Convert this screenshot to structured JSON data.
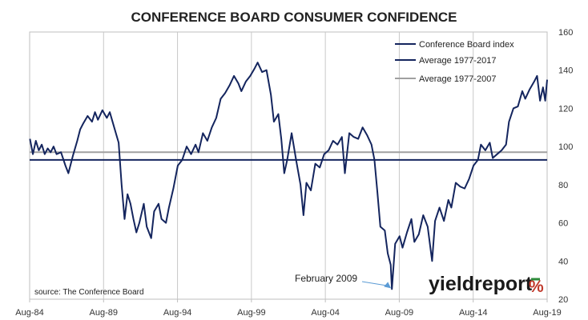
{
  "chart_data": {
    "type": "line",
    "title": "CONFERENCE BOARD CONSUMER CONFIDENCE",
    "xlabel": "",
    "ylabel": "",
    "ylim": [
      20,
      160
    ],
    "y_ticks": [
      20,
      40,
      60,
      80,
      100,
      120,
      140,
      160
    ],
    "xlim": [
      1984.58,
      2019.58
    ],
    "x_tick_labels": [
      "Aug-84",
      "Aug-89",
      "Aug-94",
      "Aug-99",
      "Aug-04",
      "Aug-09",
      "Aug-14",
      "Aug-19"
    ],
    "x_tick_positions": [
      1984.58,
      1989.58,
      1994.58,
      1999.58,
      2004.58,
      2009.58,
      2014.58,
      2019.58
    ],
    "grid": "vertical",
    "legend_position": "top-right",
    "series": [
      {
        "name": "Conference Board index",
        "color": "#14255e",
        "points": [
          [
            1984.6,
            104
          ],
          [
            1984.8,
            96
          ],
          [
            1985.0,
            103
          ],
          [
            1985.2,
            98
          ],
          [
            1985.4,
            101
          ],
          [
            1985.6,
            96
          ],
          [
            1985.8,
            99
          ],
          [
            1986.0,
            97
          ],
          [
            1986.2,
            100
          ],
          [
            1986.4,
            96
          ],
          [
            1986.7,
            97
          ],
          [
            1987.0,
            90
          ],
          [
            1987.2,
            86
          ],
          [
            1987.5,
            95
          ],
          [
            1987.8,
            103
          ],
          [
            1988.0,
            109
          ],
          [
            1988.2,
            112
          ],
          [
            1988.5,
            116
          ],
          [
            1988.8,
            113
          ],
          [
            1989.0,
            118
          ],
          [
            1989.2,
            114
          ],
          [
            1989.5,
            119
          ],
          [
            1989.8,
            115
          ],
          [
            1990.0,
            118
          ],
          [
            1990.3,
            110
          ],
          [
            1990.6,
            102
          ],
          [
            1990.8,
            80
          ],
          [
            1991.0,
            62
          ],
          [
            1991.2,
            75
          ],
          [
            1991.4,
            70
          ],
          [
            1991.6,
            62
          ],
          [
            1991.8,
            55
          ],
          [
            1992.0,
            60
          ],
          [
            1992.3,
            70
          ],
          [
            1992.5,
            58
          ],
          [
            1992.8,
            52
          ],
          [
            1993.0,
            66
          ],
          [
            1993.3,
            70
          ],
          [
            1993.5,
            62
          ],
          [
            1993.8,
            60
          ],
          [
            1994.0,
            68
          ],
          [
            1994.3,
            78
          ],
          [
            1994.6,
            90
          ],
          [
            1994.9,
            93
          ],
          [
            1995.2,
            100
          ],
          [
            1995.5,
            96
          ],
          [
            1995.8,
            101
          ],
          [
            1996.0,
            97
          ],
          [
            1996.3,
            107
          ],
          [
            1996.6,
            103
          ],
          [
            1996.9,
            110
          ],
          [
            1997.2,
            115
          ],
          [
            1997.5,
            125
          ],
          [
            1997.8,
            128
          ],
          [
            1998.1,
            132
          ],
          [
            1998.4,
            137
          ],
          [
            1998.7,
            133
          ],
          [
            1998.9,
            129
          ],
          [
            1999.2,
            134
          ],
          [
            1999.5,
            137
          ],
          [
            1999.8,
            141
          ],
          [
            2000.0,
            144
          ],
          [
            2000.3,
            139
          ],
          [
            2000.6,
            140
          ],
          [
            2000.9,
            127
          ],
          [
            2001.1,
            113
          ],
          [
            2001.4,
            117
          ],
          [
            2001.6,
            104
          ],
          [
            2001.8,
            86
          ],
          [
            2002.0,
            93
          ],
          [
            2002.3,
            107
          ],
          [
            2002.6,
            93
          ],
          [
            2002.9,
            80
          ],
          [
            2003.1,
            64
          ],
          [
            2003.3,
            81
          ],
          [
            2003.6,
            77
          ],
          [
            2003.9,
            91
          ],
          [
            2004.2,
            89
          ],
          [
            2004.5,
            96
          ],
          [
            2004.8,
            98
          ],
          [
            2005.1,
            103
          ],
          [
            2005.4,
            101
          ],
          [
            2005.7,
            105
          ],
          [
            2005.9,
            86
          ],
          [
            2006.2,
            107
          ],
          [
            2006.5,
            105
          ],
          [
            2006.8,
            104
          ],
          [
            2007.1,
            110
          ],
          [
            2007.4,
            106
          ],
          [
            2007.7,
            101
          ],
          [
            2007.9,
            93
          ],
          [
            2008.1,
            76
          ],
          [
            2008.3,
            58
          ],
          [
            2008.6,
            56
          ],
          [
            2008.8,
            44
          ],
          [
            2009.0,
            38
          ],
          [
            2009.08,
            25.3
          ],
          [
            2009.3,
            49
          ],
          [
            2009.6,
            53
          ],
          [
            2009.8,
            47
          ],
          [
            2010.1,
            55
          ],
          [
            2010.4,
            62
          ],
          [
            2010.6,
            50
          ],
          [
            2010.9,
            54
          ],
          [
            2011.2,
            64
          ],
          [
            2011.5,
            58
          ],
          [
            2011.8,
            40
          ],
          [
            2012.0,
            61
          ],
          [
            2012.3,
            68
          ],
          [
            2012.6,
            61
          ],
          [
            2012.9,
            72
          ],
          [
            2013.1,
            68
          ],
          [
            2013.4,
            81
          ],
          [
            2013.7,
            79
          ],
          [
            2014.0,
            78
          ],
          [
            2014.3,
            83
          ],
          [
            2014.6,
            90
          ],
          [
            2014.9,
            93
          ],
          [
            2015.1,
            101
          ],
          [
            2015.4,
            98
          ],
          [
            2015.7,
            102
          ],
          [
            2015.9,
            94
          ],
          [
            2016.2,
            96
          ],
          [
            2016.5,
            98
          ],
          [
            2016.8,
            101
          ],
          [
            2017.0,
            113
          ],
          [
            2017.3,
            120
          ],
          [
            2017.6,
            121
          ],
          [
            2017.9,
            129
          ],
          [
            2018.1,
            125
          ],
          [
            2018.4,
            130
          ],
          [
            2018.7,
            134
          ],
          [
            2018.9,
            137
          ],
          [
            2019.1,
            124
          ],
          [
            2019.3,
            131
          ],
          [
            2019.45,
            124
          ],
          [
            2019.58,
            135
          ]
        ]
      },
      {
        "name": "Average 1977-2017",
        "color": "#14255e",
        "constant": 93
      },
      {
        "name": "Average 1977-2007",
        "color": "#a0a0a0",
        "constant": 97
      }
    ],
    "source": "source: The Conference Board",
    "annotation": {
      "text": "February 2009",
      "x": 2009.08,
      "y": 25.3
    }
  },
  "logo": {
    "brand": "yieldreport",
    "symbol": "%"
  }
}
